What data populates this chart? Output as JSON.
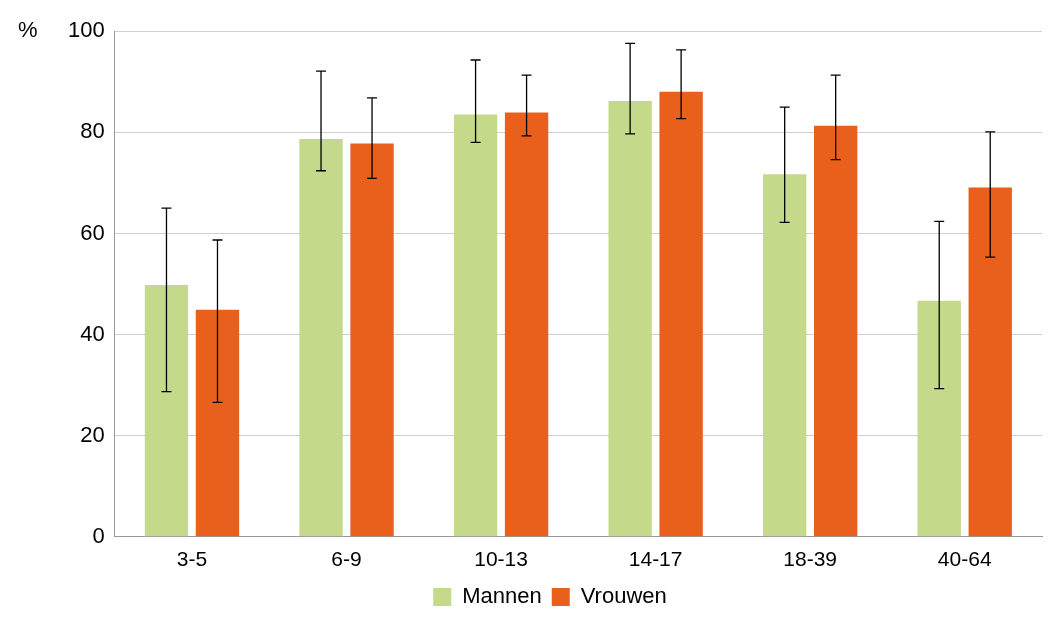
{
  "chart_data": {
    "type": "bar",
    "ylabel": "%",
    "categories": [
      "3-5",
      "6-9",
      "10-13",
      "14-17",
      "18-39",
      "40-64"
    ],
    "series": [
      {
        "name": "Mannen",
        "color": "#c4d98a",
        "values": [
          49.8,
          78.7,
          83.5,
          86.2,
          71.7,
          46.7
        ],
        "errors": [
          [
            28.7,
            65
          ],
          [
            72.4,
            92.1
          ],
          [
            78,
            94.3
          ],
          [
            79.7,
            97.6
          ],
          [
            62.2,
            85
          ],
          [
            29.3,
            62.4
          ]
        ]
      },
      {
        "name": "Vrouwen",
        "color": "#e8601c",
        "values": [
          44.9,
          77.8,
          83.9,
          88,
          81.3,
          69.1
        ],
        "errors": [
          [
            26.6,
            58.7
          ],
          [
            70.9,
            86.8
          ],
          [
            79.3,
            91.3
          ],
          [
            82.7,
            96.3
          ],
          [
            74.6,
            91.3
          ],
          [
            55.3,
            80.1
          ]
        ]
      }
    ],
    "ylim": [
      0,
      100
    ],
    "yticks": [
      0,
      20,
      40,
      60,
      80,
      100
    ],
    "grid": "y",
    "legend": "bottom"
  }
}
